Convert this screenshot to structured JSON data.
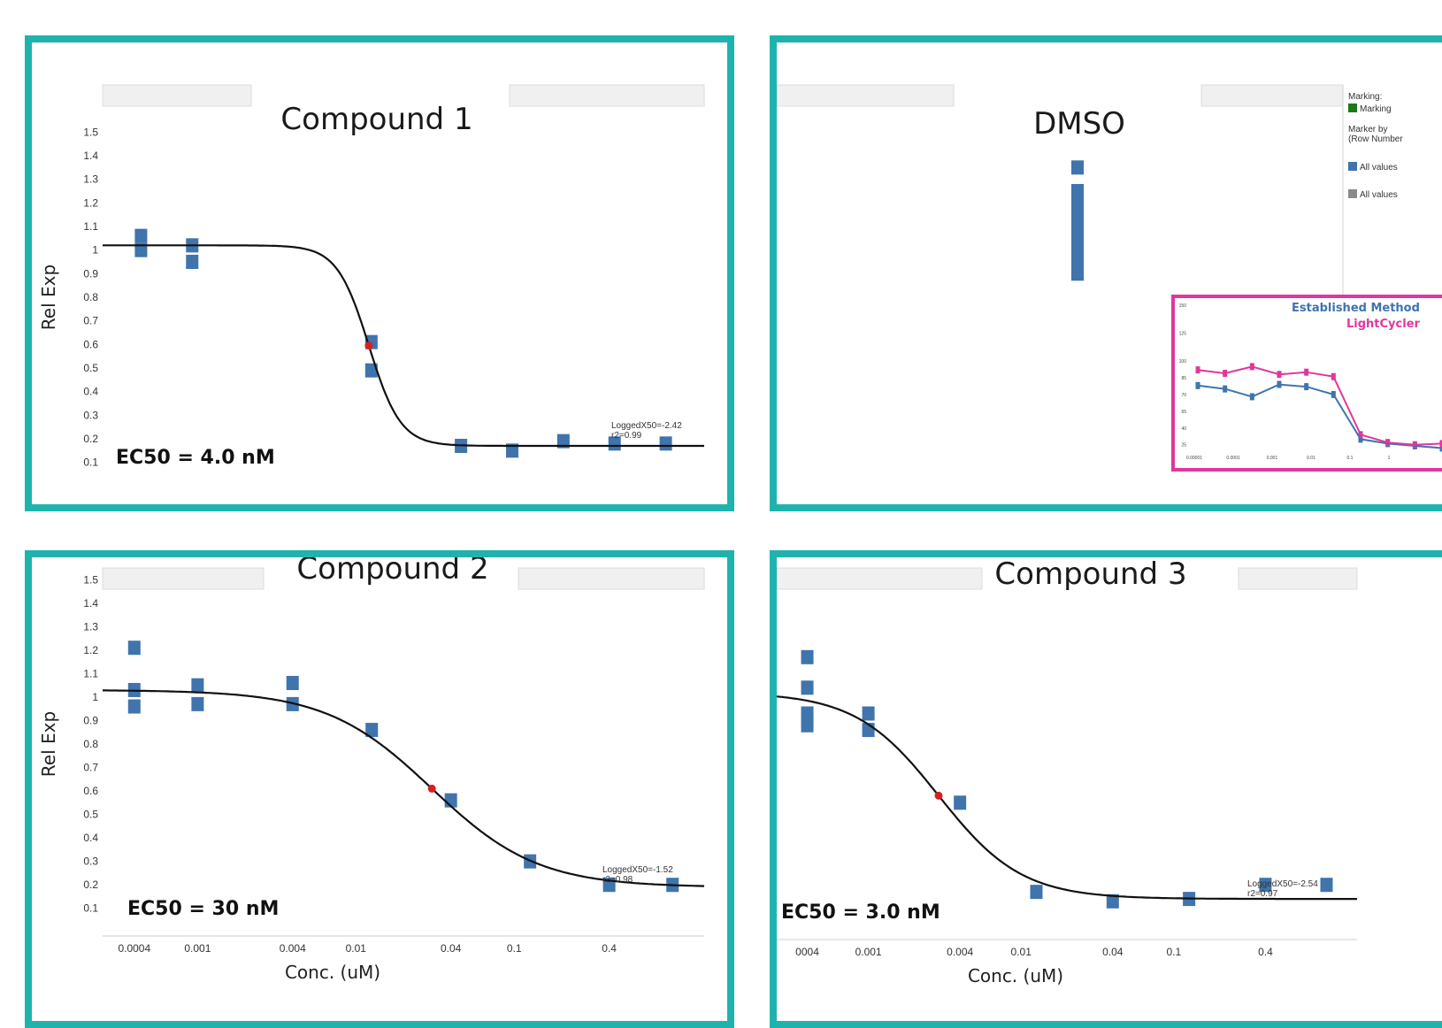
{
  "colors": {
    "border": "#1fb3ad",
    "marker": "#3f74ad",
    "curve": "#111111",
    "ec50_point": "#d62020",
    "inset_border": "#e0379c",
    "established": "#3f74ad",
    "lightcycler": "#e0379c",
    "legend_green": "#1a7a1a",
    "legend_gray": "#8a8a8a"
  },
  "axis_labels": {
    "y": "Rel Exp",
    "x": "Conc. (uM)"
  },
  "y_ticks": [
    "1.5",
    "1.4",
    "1.3",
    "1.2",
    "1.1",
    "1",
    "0.9",
    "0.8",
    "0.7",
    "0.6",
    "0.5",
    "0.4",
    "0.3",
    "0.2",
    "0.1"
  ],
  "x_ticks": [
    "0.0004",
    "0.001",
    "0.004",
    "0.01",
    "0.04",
    "0.1",
    "0.4"
  ],
  "x_ticks_p4": [
    "0004",
    "0.001",
    "0.004",
    "0.01",
    "0.04",
    "0.1",
    "0.4"
  ],
  "legend": {
    "marking_title": "Marking:",
    "marking_item": "Marking",
    "marker_by_title": "Marker by",
    "marker_by_sub": "(Row Number",
    "item1": "All values",
    "item2": "All values"
  },
  "inset": {
    "established": "Established Method",
    "lightcycler": "LightCycler",
    "y_ticks": [
      "150",
      "125",
      "100",
      "85",
      "70",
      "55",
      "40",
      "25"
    ],
    "x_ticks": [
      "0.00001",
      "0.0001",
      "0.001",
      "0.01",
      "0.1",
      "1"
    ],
    "established_points": [
      [
        0,
        78
      ],
      [
        1,
        75
      ],
      [
        2,
        68
      ],
      [
        3,
        79
      ],
      [
        4,
        77
      ],
      [
        5,
        70
      ],
      [
        6,
        30
      ],
      [
        7,
        26
      ],
      [
        8,
        24
      ],
      [
        9,
        22
      ]
    ],
    "lightcycler_points": [
      [
        0,
        92
      ],
      [
        1,
        89
      ],
      [
        2,
        95
      ],
      [
        3,
        88
      ],
      [
        4,
        90
      ],
      [
        5,
        86
      ],
      [
        6,
        34
      ],
      [
        7,
        27
      ],
      [
        8,
        25
      ],
      [
        9,
        26
      ]
    ]
  },
  "chart_data": [
    {
      "type": "scatter",
      "title": "Compound 1",
      "ec50": "EC50 = 4.0 nM",
      "fit": {
        "logged_x50": "LoggedX50=-2.42",
        "r2": "r2=0.99"
      },
      "ylabel": "Rel Exp",
      "ylim": [
        0.05,
        1.55
      ],
      "points": [
        [
          -4.2,
          1.06
        ],
        [
          -4.2,
          1.0
        ],
        [
          -3.8,
          1.02
        ],
        [
          -3.8,
          0.95
        ],
        [
          -2.4,
          0.61
        ],
        [
          -2.4,
          0.49
        ],
        [
          -1.7,
          0.17
        ],
        [
          -1.3,
          0.15
        ],
        [
          -0.9,
          0.19
        ],
        [
          -0.5,
          0.18
        ],
        [
          -0.1,
          0.18
        ]
      ],
      "curve": {
        "top": 1.02,
        "bottom": 0.17,
        "ec50_log": -2.42,
        "hill": 3.5
      }
    },
    {
      "type": "scatter",
      "title": "DMSO",
      "ylim": [
        0.05,
        1.55
      ],
      "points": [
        [
          0,
          1.35
        ],
        [
          0,
          1.25
        ],
        [
          0,
          1.2
        ],
        [
          0,
          1.15
        ],
        [
          0,
          1.1
        ],
        [
          0,
          1.05
        ],
        [
          0,
          1.0
        ],
        [
          0,
          0.95
        ],
        [
          0,
          0.9
        ]
      ]
    },
    {
      "type": "scatter",
      "title": "Compound 2",
      "ec50": "EC50 = 30 nM",
      "fit": {
        "logged_x50": "LoggedX50=-1.52",
        "r2": "r2=0.98"
      },
      "ylabel": "Rel Exp",
      "xlabel": "Conc. (uM)",
      "ylim": [
        0.05,
        1.55
      ],
      "points": [
        [
          -3.4,
          1.21
        ],
        [
          -3.4,
          1.03
        ],
        [
          -3.4,
          0.96
        ],
        [
          -3.0,
          1.05
        ],
        [
          -3.0,
          0.97
        ],
        [
          -2.4,
          1.06
        ],
        [
          -2.4,
          0.97
        ],
        [
          -1.9,
          0.86
        ],
        [
          -1.4,
          0.56
        ],
        [
          -0.9,
          0.3
        ],
        [
          -0.4,
          0.2
        ],
        [
          0.0,
          0.2
        ]
      ],
      "curve": {
        "top": 1.03,
        "bottom": 0.19,
        "ec50_log": -1.52,
        "hill": 1.3
      }
    },
    {
      "type": "scatter",
      "title": "Compound 3",
      "ec50": "EC50 = 3.0 nM",
      "fit": {
        "logged_x50": "LoggedX50=-2.54",
        "r2": "r2=0.97"
      },
      "xlabel": "Conc. (uM)",
      "ylim": [
        0.05,
        1.55
      ],
      "points": [
        [
          -3.4,
          1.17
        ],
        [
          -3.4,
          1.04
        ],
        [
          -3.4,
          0.93
        ],
        [
          -3.4,
          0.88
        ],
        [
          -3.0,
          0.93
        ],
        [
          -3.0,
          0.86
        ],
        [
          -2.4,
          0.55
        ],
        [
          -1.9,
          0.17
        ],
        [
          -1.4,
          0.13
        ],
        [
          -0.9,
          0.14
        ],
        [
          -0.4,
          0.2
        ],
        [
          0.0,
          0.2
        ]
      ],
      "curve": {
        "top": 1.02,
        "bottom": 0.14,
        "ec50_log": -2.54,
        "hill": 1.6
      }
    }
  ]
}
